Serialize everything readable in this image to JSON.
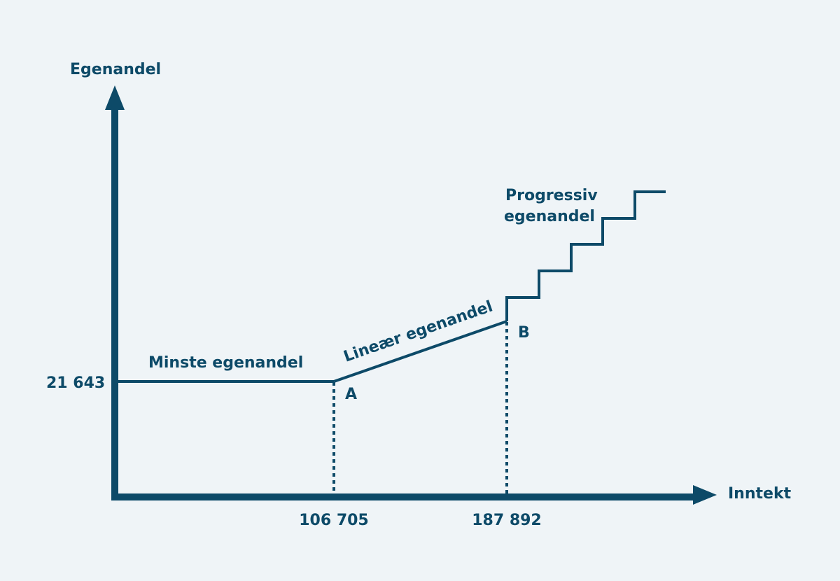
{
  "axes": {
    "y_label": "Egenandel",
    "x_label": "Inntekt"
  },
  "ticks": {
    "y_value": "21 643",
    "x_a": "106 705",
    "x_b": "187 892"
  },
  "segments": {
    "minste": "Minste egenandel",
    "lineaer": "Lineær egenandel",
    "progressiv_line1": "Progressiv",
    "progressiv_line2": "egenandel"
  },
  "points": {
    "a": "A",
    "b": "B"
  },
  "colors": {
    "background": "#eff4f7",
    "primary": "#0d4a68"
  }
}
